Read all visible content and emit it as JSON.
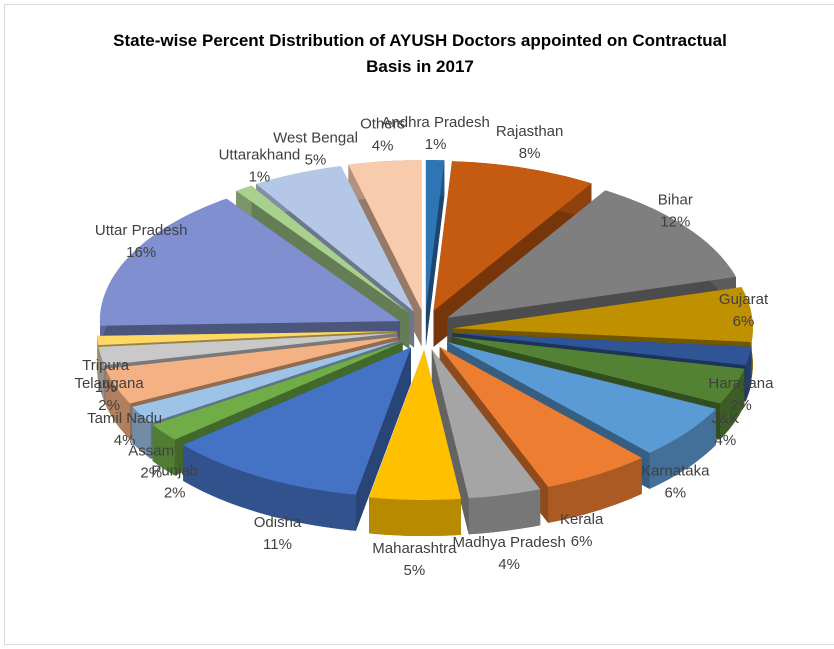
{
  "chart_data": {
    "type": "pie",
    "title": "State-wise Percent Distribution of AYUSH Doctors appointed on Contractual Basis in 2017",
    "categories": [
      "Andhra Pradesh",
      "Rajasthan",
      "Bihar",
      "Gujarat",
      "Harayana",
      "J&K",
      "Karnataka",
      "Kerala",
      "Madhya Pradesh",
      "Maharashtra",
      "Odisha",
      "Punjab",
      "Assam",
      "Tamil Nadu",
      "Telangana",
      "Tripura",
      "Uttar Pradesh",
      "Uttarakhand",
      "West Bengal",
      "Others"
    ],
    "values": [
      1,
      8,
      12,
      6,
      2,
      4,
      6,
      6,
      4,
      5,
      11,
      2,
      2,
      4,
      2,
      1,
      16,
      1,
      5,
      4
    ],
    "value_labels": [
      "1%",
      "8%",
      "12%",
      "6%",
      "2%",
      "4%",
      "6%",
      "6%",
      "4%",
      "5%",
      "11%",
      "2%",
      "2%",
      "4%",
      "2%",
      "1%",
      "16%",
      "1%",
      "5%",
      "4%"
    ],
    "colors": [
      "#2e75b6",
      "#c55a11",
      "#7f7f7f",
      "#bf9000",
      "#2f5597",
      "#548235",
      "#5b9bd5",
      "#ed7d31",
      "#a5a5a5",
      "#ffc000",
      "#4472c4",
      "#70ad47",
      "#9dc3e6",
      "#f4b183",
      "#c9c9c9",
      "#ffd966",
      "#7f8fd0",
      "#a9d18e",
      "#b4c7e7",
      "#f8cbad"
    ]
  }
}
